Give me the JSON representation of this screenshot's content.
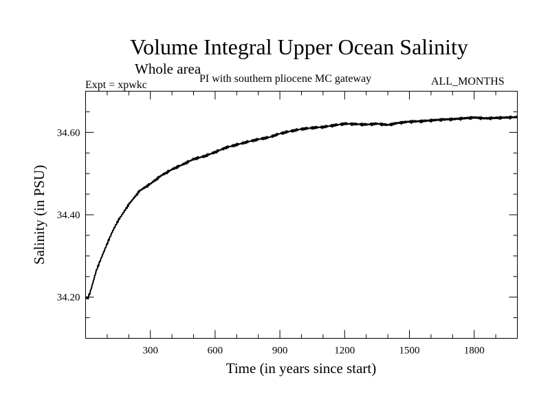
{
  "header": {
    "title": "Volume Integral Upper Ocean Salinity",
    "subtitle": "Whole area",
    "expt": "Expt = xpwkc",
    "description": "PI with southern pliocene MC gateway",
    "months": "ALL_MONTHS"
  },
  "chart_data": {
    "type": "line",
    "title": "Volume Integral Upper Ocean Salinity",
    "subtitle": "Whole area",
    "xlabel": "Time (in years since start)",
    "ylabel": "Salinity (in PSU)",
    "xlim": [
      0,
      2000
    ],
    "ylim": [
      34.1,
      34.7
    ],
    "x_ticks": [
      300,
      600,
      900,
      1200,
      1500,
      1800
    ],
    "x_tick_labels": [
      "300",
      "600",
      "900",
      "1200",
      "1500",
      "1800"
    ],
    "y_ticks": [
      34.2,
      34.4,
      34.6
    ],
    "y_tick_labels": [
      "34.20",
      "34.40",
      "34.60"
    ],
    "x_minor_step": 100,
    "y_minor_step": 0.05,
    "series": [
      {
        "name": "xpwkc",
        "x": [
          0,
          10,
          20,
          30,
          50,
          75,
          100,
          125,
          150,
          200,
          250,
          300,
          350,
          400,
          450,
          500,
          550,
          600,
          650,
          700,
          750,
          800,
          850,
          900,
          950,
          1000,
          1050,
          1100,
          1150,
          1200,
          1250,
          1300,
          1350,
          1400,
          1450,
          1500,
          1550,
          1600,
          1650,
          1700,
          1750,
          1800,
          1850,
          1900,
          1950,
          2000
        ],
        "values": [
          34.2,
          34.197,
          34.21,
          34.228,
          34.265,
          34.298,
          34.33,
          34.36,
          34.385,
          34.425,
          34.458,
          34.475,
          34.495,
          34.51,
          34.522,
          34.535,
          34.542,
          34.552,
          34.563,
          34.57,
          34.577,
          34.583,
          34.588,
          34.597,
          34.603,
          34.608,
          34.611,
          34.613,
          34.617,
          34.621,
          34.62,
          34.619,
          34.621,
          34.618,
          34.623,
          34.626,
          34.627,
          34.629,
          34.631,
          34.632,
          34.634,
          34.636,
          34.634,
          34.635,
          34.636,
          34.637
        ]
      }
    ]
  }
}
